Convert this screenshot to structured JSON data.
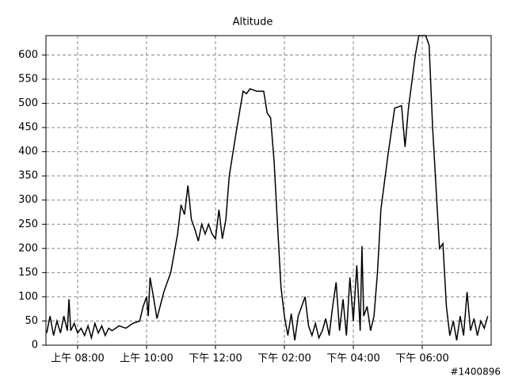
{
  "chart_data": {
    "type": "line",
    "title": "Altitude",
    "title_color": "#2222bb",
    "x": [
      7.1,
      7.2,
      7.3,
      7.4,
      7.5,
      7.6,
      7.7,
      7.75,
      7.8,
      7.9,
      8.0,
      8.1,
      8.2,
      8.3,
      8.4,
      8.5,
      8.6,
      8.7,
      8.8,
      8.9,
      9.0,
      9.2,
      9.4,
      9.6,
      9.8,
      9.9,
      10.0,
      10.05,
      10.1,
      10.2,
      10.3,
      10.5,
      10.7,
      10.9,
      11.0,
      11.1,
      11.2,
      11.3,
      11.4,
      11.5,
      11.6,
      11.7,
      11.8,
      11.9,
      12.0,
      12.1,
      12.2,
      12.3,
      12.4,
      12.6,
      12.8,
      12.9,
      13.0,
      13.2,
      13.4,
      13.5,
      13.6,
      13.7,
      13.8,
      13.9,
      14.0,
      14.1,
      14.2,
      14.3,
      14.4,
      14.5,
      14.6,
      14.7,
      14.8,
      14.9,
      15.0,
      15.1,
      15.2,
      15.3,
      15.4,
      15.5,
      15.6,
      15.7,
      15.8,
      15.9,
      16.0,
      16.1,
      16.2,
      16.25,
      16.3,
      16.4,
      16.5,
      16.6,
      16.7,
      16.8,
      17.0,
      17.2,
      17.4,
      17.5,
      17.6,
      17.8,
      17.9,
      18.1,
      18.2,
      18.3,
      18.5,
      18.6,
      18.7,
      18.8,
      18.9,
      19.0,
      19.1,
      19.2,
      19.3,
      19.4,
      19.5,
      19.6,
      19.7,
      19.8,
      19.9
    ],
    "values": [
      25,
      60,
      20,
      50,
      25,
      60,
      30,
      95,
      30,
      45,
      25,
      35,
      20,
      40,
      15,
      45,
      25,
      40,
      20,
      35,
      30,
      40,
      35,
      45,
      50,
      80,
      100,
      60,
      140,
      100,
      55,
      110,
      150,
      230,
      290,
      270,
      330,
      260,
      240,
      215,
      250,
      230,
      250,
      230,
      220,
      280,
      220,
      260,
      350,
      440,
      525,
      520,
      530,
      525,
      525,
      480,
      470,
      380,
      250,
      120,
      60,
      20,
      65,
      10,
      60,
      80,
      100,
      40,
      20,
      45,
      15,
      30,
      55,
      20,
      80,
      130,
      30,
      95,
      20,
      140,
      50,
      165,
      30,
      205,
      60,
      80,
      30,
      60,
      150,
      280,
      390,
      490,
      495,
      410,
      490,
      600,
      640,
      640,
      620,
      450,
      200,
      210,
      80,
      20,
      50,
      10,
      60,
      20,
      110,
      30,
      55,
      20,
      50,
      35,
      60
    ],
    "color": "#000000",
    "xlim": [
      7.08,
      20.0
    ],
    "xticks": [
      {
        "value": 8,
        "label": "上午 08:00"
      },
      {
        "value": 10,
        "label": "上午 10:00"
      },
      {
        "value": 12,
        "label": "下午 12:00"
      },
      {
        "value": 14,
        "label": "下午 02:00"
      },
      {
        "value": 16,
        "label": "下午 04:00"
      },
      {
        "value": 18,
        "label": "下午 06:00"
      }
    ],
    "ylim": [
      0,
      640
    ],
    "yticks": [
      0,
      50,
      100,
      150,
      200,
      250,
      300,
      350,
      400,
      450,
      500,
      550,
      600
    ],
    "grid": true,
    "watermark": "#1400896"
  }
}
